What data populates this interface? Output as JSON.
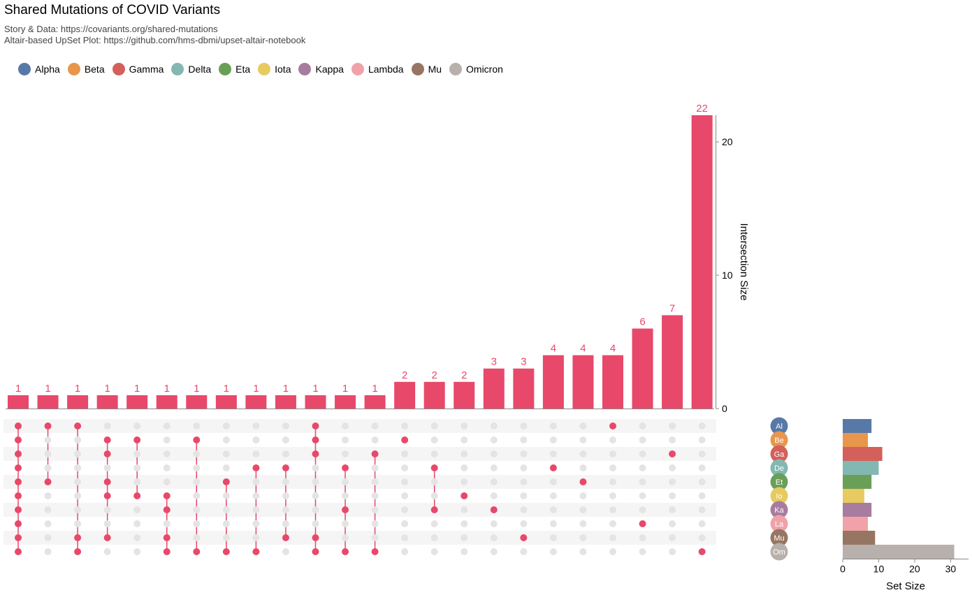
{
  "header": {
    "title": "Shared Mutations of COVID Variants",
    "subtitle_1": "Story & Data: https://covariants.org/shared-mutations",
    "subtitle_2": "Altair-based UpSet Plot: https://github.com/hms-dbmi/upset-altair-notebook"
  },
  "chart_data": {
    "type": "bar",
    "title": "Shared Mutations of COVID Variants",
    "sets": [
      {
        "name": "Alpha",
        "abbr": "Al",
        "color": "#5779a8",
        "size": 8
      },
      {
        "name": "Beta",
        "abbr": "Be",
        "color": "#e8964c",
        "size": 7
      },
      {
        "name": "Gamma",
        "abbr": "Ga",
        "color": "#d3605b",
        "size": 11
      },
      {
        "name": "Delta",
        "abbr": "De",
        "color": "#83b7b2",
        "size": 10
      },
      {
        "name": "Eta",
        "abbr": "Et",
        "color": "#6a9f58",
        "size": 8
      },
      {
        "name": "Iota",
        "abbr": "Io",
        "color": "#e7ca60",
        "size": 6
      },
      {
        "name": "Kappa",
        "abbr": "Ka",
        "color": "#a87c9f",
        "size": 8
      },
      {
        "name": "Lambda",
        "abbr": "La",
        "color": "#f1a2a9",
        "size": 7
      },
      {
        "name": "Mu",
        "abbr": "Mu",
        "color": "#967662",
        "size": 9
      },
      {
        "name": "Omicron",
        "abbr": "Om",
        "color": "#b8b0ac",
        "size": 31
      }
    ],
    "intersections": [
      {
        "size": 1,
        "sets": [
          "Alpha",
          "Beta",
          "Gamma",
          "Delta",
          "Eta",
          "Iota",
          "Kappa",
          "Lambda",
          "Mu",
          "Omicron"
        ]
      },
      {
        "size": 1,
        "sets": [
          "Alpha",
          "Eta"
        ]
      },
      {
        "size": 1,
        "sets": [
          "Alpha",
          "Mu",
          "Omicron"
        ]
      },
      {
        "size": 1,
        "sets": [
          "Beta",
          "Gamma",
          "Eta",
          "Iota",
          "Mu"
        ]
      },
      {
        "size": 1,
        "sets": [
          "Beta",
          "Iota"
        ]
      },
      {
        "size": 1,
        "sets": [
          "Iota",
          "Kappa",
          "Mu",
          "Omicron"
        ]
      },
      {
        "size": 1,
        "sets": [
          "Beta",
          "Omicron"
        ]
      },
      {
        "size": 1,
        "sets": [
          "Eta",
          "Omicron"
        ]
      },
      {
        "size": 1,
        "sets": [
          "Delta",
          "Omicron"
        ]
      },
      {
        "size": 1,
        "sets": [
          "Delta",
          "Mu"
        ]
      },
      {
        "size": 1,
        "sets": [
          "Alpha",
          "Beta",
          "Gamma",
          "Mu",
          "Omicron"
        ]
      },
      {
        "size": 1,
        "sets": [
          "Delta",
          "Kappa",
          "Omicron"
        ]
      },
      {
        "size": 1,
        "sets": [
          "Gamma",
          "Omicron"
        ]
      },
      {
        "size": 2,
        "sets": [
          "Beta"
        ]
      },
      {
        "size": 2,
        "sets": [
          "Delta",
          "Kappa"
        ]
      },
      {
        "size": 2,
        "sets": [
          "Iota"
        ]
      },
      {
        "size": 3,
        "sets": [
          "Kappa"
        ]
      },
      {
        "size": 3,
        "sets": [
          "Mu"
        ]
      },
      {
        "size": 4,
        "sets": [
          "Delta"
        ]
      },
      {
        "size": 4,
        "sets": [
          "Eta"
        ]
      },
      {
        "size": 4,
        "sets": [
          "Alpha"
        ]
      },
      {
        "size": 6,
        "sets": [
          "Lambda"
        ]
      },
      {
        "size": 7,
        "sets": [
          "Gamma"
        ]
      },
      {
        "size": 22,
        "sets": [
          "Omicron"
        ]
      }
    ],
    "bar_color": "#e8486a",
    "y_axis": {
      "title": "Intersection Size",
      "ticks": [
        0,
        10,
        20
      ],
      "range": [
        0,
        22
      ]
    },
    "size_axis": {
      "title": "Set Size",
      "ticks": [
        0,
        10,
        20,
        30
      ],
      "range": [
        0,
        34
      ]
    }
  }
}
